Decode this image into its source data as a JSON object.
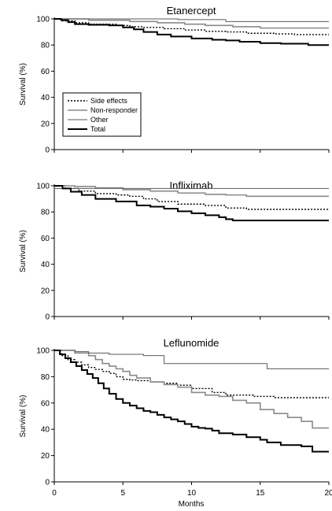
{
  "chart_data": [
    {
      "type": "line",
      "title": "Etanercept",
      "ylabel": "Survival (%)",
      "xlabel": "",
      "xlim": [
        0,
        20
      ],
      "ylim": [
        0,
        100
      ],
      "yticks": [
        "0",
        "20",
        "40",
        "60",
        "80",
        "100"
      ],
      "xticks": [],
      "legend": {
        "placement": "left",
        "entries": [
          "Side effects",
          "Non-responder",
          "Other",
          "Total"
        ]
      },
      "series": [
        {
          "name": "Side effects",
          "style": "dotted",
          "color": "#000000",
          "width": 1.4,
          "x": [
            0,
            0.6,
            1.5,
            2.5,
            4.5,
            5.5,
            6.5,
            8.0,
            9.5,
            11.0,
            12.5,
            14.0,
            16.0,
            17.5,
            19.0,
            20.0
          ],
          "y": [
            100,
            98.5,
            97,
            96,
            95,
            94,
            93.5,
            92.5,
            91.5,
            90.5,
            90,
            89,
            88.5,
            88,
            88,
            88
          ]
        },
        {
          "name": "Non-responder",
          "style": "solid",
          "color": "#8a8a8a",
          "width": 1.6,
          "x": [
            0,
            2.5,
            5.5,
            7.5,
            9.5,
            11.0,
            13.0,
            15.0,
            20.0
          ],
          "y": [
            100,
            99,
            98,
            97,
            96,
            95,
            94,
            93,
            93
          ]
        },
        {
          "name": "Other",
          "style": "solid",
          "color": "#5a5a5a",
          "width": 1.0,
          "x": [
            0,
            9.0,
            12.5,
            20.0
          ],
          "y": [
            100,
            99.5,
            98,
            98
          ]
        },
        {
          "name": "Total",
          "style": "solid",
          "color": "#000000",
          "width": 2.0,
          "x": [
            0,
            0.5,
            1.0,
            1.5,
            2.5,
            4.0,
            5.0,
            5.8,
            6.5,
            7.5,
            8.5,
            10.0,
            11.5,
            12.5,
            13.5,
            15.0,
            16.5,
            18.5,
            20.0
          ],
          "y": [
            100,
            99,
            97.5,
            96,
            95.5,
            95,
            93.5,
            92,
            90,
            88,
            86.5,
            85,
            84,
            83.5,
            82.5,
            81.5,
            81,
            80,
            80
          ]
        }
      ]
    },
    {
      "type": "line",
      "title": "Infliximab",
      "ylabel": "Survival (%)",
      "xlabel": "",
      "xlim": [
        0,
        20
      ],
      "ylim": [
        0,
        100
      ],
      "yticks": [
        "0",
        "20",
        "40",
        "60",
        "80",
        "100"
      ],
      "xticks": [],
      "series": [
        {
          "name": "Side effects",
          "style": "dotted",
          "color": "#000000",
          "width": 1.4,
          "x": [
            0,
            0.8,
            1.8,
            3.0,
            4.5,
            5.5,
            6.5,
            7.5,
            9.0,
            11.0,
            12.5,
            14.0,
            16.0,
            18.0,
            20.0
          ],
          "y": [
            100,
            98,
            96,
            94,
            93,
            92,
            90,
            88,
            86,
            85,
            83,
            82,
            82,
            82,
            82
          ]
        },
        {
          "name": "Non-responder",
          "style": "solid",
          "color": "#8a8a8a",
          "width": 1.6,
          "x": [
            0,
            1.5,
            3.0,
            5.0,
            7.0,
            9.0,
            11.0,
            12.5,
            14.0,
            20.0
          ],
          "y": [
            100,
            99.5,
            98.5,
            97,
            96,
            94.5,
            93.5,
            93,
            92,
            92
          ]
        },
        {
          "name": "Other",
          "style": "solid",
          "color": "#5a5a5a",
          "width": 1.0,
          "x": [
            0,
            20.0
          ],
          "y": [
            98,
            98
          ]
        },
        {
          "name": "Total",
          "style": "solid",
          "color": "#000000",
          "width": 2.0,
          "x": [
            0,
            0.6,
            1.2,
            2.0,
            3.0,
            4.5,
            6.0,
            7.0,
            8.0,
            9.0,
            10.0,
            11.0,
            12.0,
            12.5,
            13.0,
            20.0
          ],
          "y": [
            100,
            98,
            95.5,
            93,
            90,
            88,
            85,
            84,
            82.5,
            80.5,
            79,
            77.5,
            76,
            74.5,
            73.5,
            73.5
          ]
        }
      ]
    },
    {
      "type": "line",
      "title": "Leflunomide",
      "ylabel": "Survival (%)",
      "xlabel": "Months",
      "xlim": [
        0,
        20
      ],
      "ylim": [
        0,
        100
      ],
      "yticks": [
        "0",
        "20",
        "40",
        "60",
        "80",
        "100"
      ],
      "xticks": [
        "0",
        "5",
        "10",
        "15",
        "20"
      ],
      "series": [
        {
          "name": "Side effects",
          "style": "dotted",
          "color": "#000000",
          "width": 1.4,
          "x": [
            0,
            0.5,
            1.0,
            1.5,
            2.0,
            2.5,
            3.0,
            3.5,
            4.0,
            4.5,
            5.0,
            5.5,
            6.0,
            7.0,
            8.0,
            9.0,
            10.0,
            11.5,
            12.5,
            14.5,
            16.0,
            20.0
          ],
          "y": [
            100,
            96,
            93,
            91,
            89,
            87,
            85.5,
            84,
            82.5,
            80,
            78,
            77.5,
            77,
            76,
            75,
            73.5,
            71,
            68,
            66,
            65,
            64,
            64
          ]
        },
        {
          "name": "Non-responder",
          "style": "solid",
          "color": "#8a8a8a",
          "width": 1.6,
          "x": [
            0,
            1.5,
            2.5,
            3.0,
            3.5,
            4.0,
            4.5,
            5.0,
            5.5,
            6.0,
            7.0,
            8.0,
            9.0,
            10.0,
            11.0,
            12.0,
            13.0,
            14.0,
            15.0,
            16.0,
            17.0,
            18.0,
            18.8,
            20.0
          ],
          "y": [
            100,
            98,
            96,
            93,
            90,
            88,
            86,
            84,
            81,
            79,
            76,
            74,
            72,
            68,
            66,
            65,
            62,
            60,
            55,
            52,
            49,
            46,
            41,
            41
          ]
        },
        {
          "name": "Other",
          "style": "solid",
          "color": "#5a5a5a",
          "width": 1.0,
          "x": [
            0,
            1.5,
            2.5,
            4.0,
            6.5,
            8.0,
            15.5,
            20.0
          ],
          "y": [
            100,
            99,
            98,
            97,
            96,
            90,
            86,
            86
          ]
        },
        {
          "name": "Total",
          "style": "solid",
          "color": "#000000",
          "width": 2.0,
          "x": [
            0,
            0.4,
            0.8,
            1.2,
            1.6,
            2.0,
            2.4,
            2.8,
            3.2,
            3.6,
            4.0,
            4.5,
            5.0,
            5.5,
            6.0,
            6.5,
            7.0,
            7.5,
            8.0,
            8.5,
            9.0,
            9.5,
            10.0,
            10.5,
            11.0,
            11.5,
            12.0,
            13.0,
            14.0,
            15.0,
            15.5,
            16.5,
            18.0,
            18.8,
            20.0
          ],
          "y": [
            100,
            97,
            94,
            91,
            88,
            85,
            82,
            79,
            75,
            71,
            67,
            63,
            60,
            58,
            56,
            54,
            53,
            51,
            49,
            47.5,
            46,
            44,
            42,
            41,
            40.5,
            39,
            37,
            36,
            34,
            32,
            30,
            28,
            27,
            23,
            23
          ]
        }
      ]
    }
  ]
}
